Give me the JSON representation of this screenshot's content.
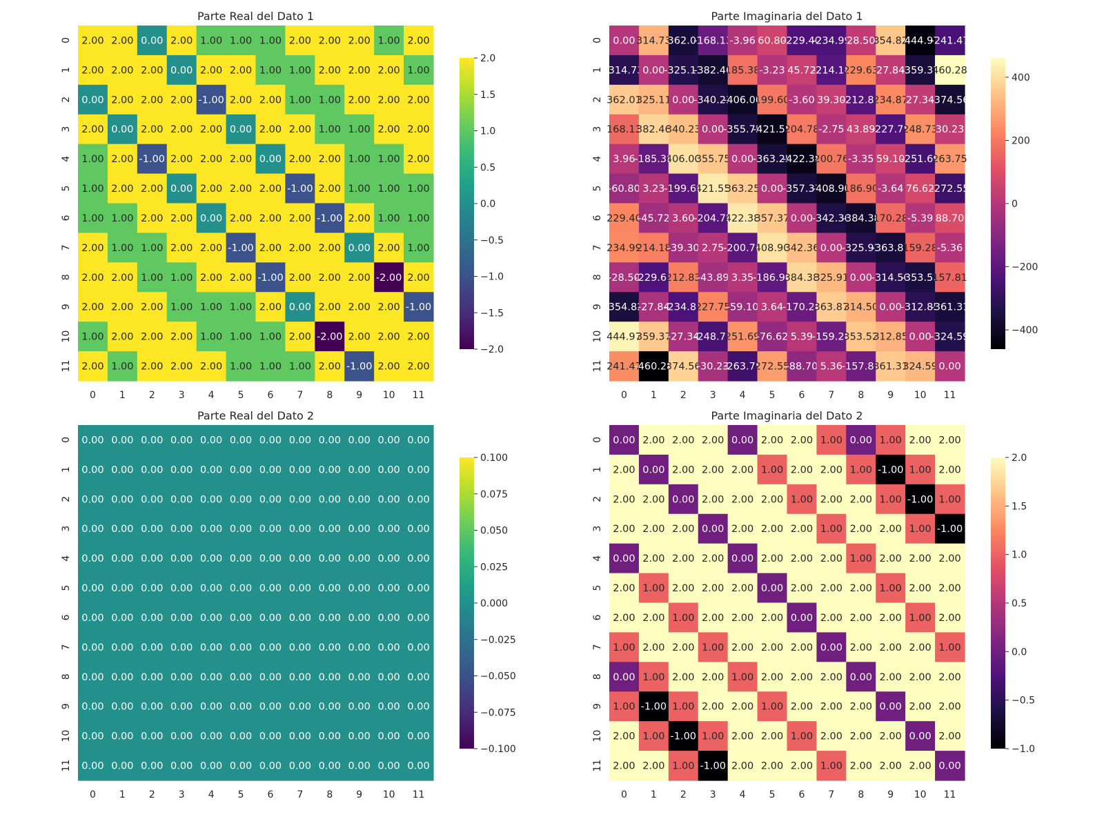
{
  "chart_data": [
    {
      "type": "heatmap",
      "title": "Parte Real del Dato 1",
      "colormap": "viridis",
      "vmin": -2,
      "vmax": 2,
      "x_ticks": [
        "0",
        "1",
        "2",
        "3",
        "4",
        "5",
        "6",
        "7",
        "8",
        "9",
        "10",
        "11"
      ],
      "y_ticks": [
        "0",
        "1",
        "2",
        "3",
        "4",
        "5",
        "6",
        "7",
        "8",
        "9",
        "10",
        "11"
      ],
      "colorbar_ticks": [
        "2.0",
        "1.5",
        "1.0",
        "0.5",
        "0.0",
        "−0.5",
        "−1.0",
        "−1.5",
        "−2.0"
      ],
      "colorbar_tick_values": [
        2.0,
        1.5,
        1.0,
        0.5,
        0.0,
        -0.5,
        -1.0,
        -1.5,
        -2.0
      ],
      "annot_format": "2f",
      "values": [
        [
          2,
          2,
          0,
          2,
          1,
          1,
          1,
          2,
          2,
          2,
          1,
          2
        ],
        [
          2,
          2,
          2,
          0,
          2,
          2,
          1,
          1,
          2,
          2,
          2,
          1
        ],
        [
          0,
          2,
          2,
          2,
          -1,
          2,
          2,
          1,
          1,
          2,
          2,
          2
        ],
        [
          2,
          0,
          2,
          2,
          2,
          0,
          2,
          2,
          1,
          1,
          2,
          2
        ],
        [
          1,
          2,
          -1,
          2,
          2,
          2,
          0,
          2,
          2,
          1,
          1,
          2
        ],
        [
          1,
          2,
          2,
          0,
          2,
          2,
          2,
          -1,
          2,
          1,
          1,
          1
        ],
        [
          1,
          1,
          2,
          2,
          0,
          2,
          2,
          2,
          -1,
          2,
          1,
          1
        ],
        [
          2,
          1,
          1,
          2,
          2,
          -1,
          2,
          2,
          2,
          0,
          2,
          1
        ],
        [
          2,
          2,
          1,
          1,
          2,
          2,
          -1,
          2,
          2,
          2,
          -2,
          2
        ],
        [
          2,
          2,
          2,
          1,
          1,
          1,
          2,
          0,
          2,
          2,
          2,
          -1
        ],
        [
          1,
          2,
          2,
          2,
          1,
          1,
          1,
          2,
          -2,
          2,
          2,
          2
        ],
        [
          2,
          1,
          2,
          2,
          2,
          1,
          1,
          1,
          2,
          -1,
          2,
          2
        ]
      ]
    },
    {
      "type": "heatmap",
      "title": "Parte Imaginaria del Dato 1",
      "colormap": "magma",
      "vmin": -461,
      "vmax": 461,
      "x_ticks": [
        "0",
        "1",
        "2",
        "3",
        "4",
        "5",
        "6",
        "7",
        "8",
        "9",
        "10",
        "11"
      ],
      "y_ticks": [
        "0",
        "1",
        "2",
        "3",
        "4",
        "5",
        "6",
        "7",
        "8",
        "9",
        "10",
        "11"
      ],
      "colorbar_ticks": [
        "400",
        "200",
        "0",
        "−200",
        "−400"
      ],
      "colorbar_tick_values": [
        400,
        200,
        0,
        -200,
        -400
      ],
      "annot_format": "2f",
      "values": [
        [
          0.0,
          314.73,
          -362.01,
          -168.13,
          -3.96,
          60.8,
          -229.4,
          -234.99,
          28.5,
          354.82,
          -444.97,
          -241.47
        ],
        [
          -314.73,
          0.0,
          -325.11,
          -382.46,
          185.38,
          -3.23,
          45.72,
          -214.18,
          229.63,
          27.84,
          -359.37,
          460.28
        ],
        [
          362.01,
          325.11,
          0.0,
          -340.23,
          -406.0,
          199.6,
          -3.6,
          39.3,
          -212.83,
          234.87,
          27.34,
          -374.56
        ],
        [
          168.13,
          382.46,
          340.23,
          0.0,
          -355.75,
          -421.55,
          204.78,
          -2.75,
          43.89,
          -227.75,
          248.73,
          30.23
        ],
        [
          3.96,
          -185.38,
          406.0,
          355.75,
          0.0,
          -363.25,
          -422.38,
          200.76,
          -3.35,
          59.1,
          -251.69,
          263.75
        ],
        [
          -60.8,
          3.23,
          -199.6,
          421.55,
          363.25,
          0.0,
          -357.37,
          -408.9,
          186.9,
          -3.64,
          76.62,
          -272.55
        ],
        [
          229.4,
          -45.72,
          3.6,
          -204.78,
          422.38,
          357.37,
          0.0,
          -342.36,
          -384.38,
          170.28,
          -5.39,
          88.7
        ],
        [
          234.99,
          214.18,
          -39.3,
          2.75,
          -200.76,
          408.9,
          342.36,
          0.0,
          -325.91,
          -363.87,
          159.28,
          -5.36
        ],
        [
          -28.5,
          -229.63,
          212.83,
          -43.89,
          3.35,
          -186.9,
          384.38,
          325.91,
          0.0,
          -314.5,
          -353.52,
          157.81
        ],
        [
          -354.82,
          -27.84,
          -234.87,
          227.75,
          -59.1,
          3.64,
          -170.28,
          363.87,
          314.5,
          0.0,
          -312.85,
          -361.31
        ],
        [
          444.97,
          359.37,
          -27.34,
          -248.73,
          251.69,
          -76.62,
          5.39,
          -159.28,
          353.52,
          312.85,
          0.0,
          -324.59
        ],
        [
          241.47,
          -460.28,
          374.56,
          -30.23,
          -263.75,
          272.55,
          -88.7,
          5.36,
          -157.81,
          361.31,
          324.59,
          0.0
        ]
      ]
    },
    {
      "type": "heatmap",
      "title": "Parte Real del Dato 2",
      "colormap": "viridis",
      "vmin": -0.1,
      "vmax": 0.1,
      "x_ticks": [
        "0",
        "1",
        "2",
        "3",
        "4",
        "5",
        "6",
        "7",
        "8",
        "9",
        "10",
        "11"
      ],
      "y_ticks": [
        "0",
        "1",
        "2",
        "3",
        "4",
        "5",
        "6",
        "7",
        "8",
        "9",
        "10",
        "11"
      ],
      "colorbar_ticks": [
        "0.100",
        "0.075",
        "0.050",
        "0.025",
        "0.000",
        "−0.025",
        "−0.050",
        "−0.075",
        "−0.100"
      ],
      "colorbar_tick_values": [
        0.1,
        0.075,
        0.05,
        0.025,
        0,
        -0.025,
        -0.05,
        -0.075,
        -0.1
      ],
      "annot_format": "2f",
      "values": [
        [
          0,
          0,
          0,
          0,
          0,
          0,
          0,
          0,
          0,
          0,
          0,
          0
        ],
        [
          0,
          0,
          0,
          0,
          0,
          0,
          0,
          0,
          0,
          0,
          0,
          0
        ],
        [
          0,
          0,
          0,
          0,
          0,
          0,
          0,
          0,
          0,
          0,
          0,
          0
        ],
        [
          0,
          0,
          0,
          0,
          0,
          0,
          0,
          0,
          0,
          0,
          0,
          0
        ],
        [
          0,
          0,
          0,
          0,
          0,
          0,
          0,
          0,
          0,
          0,
          0,
          0
        ],
        [
          0,
          0,
          0,
          0,
          0,
          0,
          0,
          0,
          0,
          0,
          0,
          0
        ],
        [
          0,
          0,
          0,
          0,
          0,
          0,
          0,
          0,
          0,
          0,
          0,
          0
        ],
        [
          0,
          0,
          0,
          0,
          0,
          0,
          0,
          0,
          0,
          0,
          0,
          0
        ],
        [
          0,
          0,
          0,
          0,
          0,
          0,
          0,
          0,
          0,
          0,
          0,
          0
        ],
        [
          0,
          0,
          0,
          0,
          0,
          0,
          0,
          0,
          0,
          0,
          0,
          0
        ],
        [
          0,
          0,
          0,
          0,
          0,
          0,
          0,
          0,
          0,
          0,
          0,
          0
        ],
        [
          0,
          0,
          0,
          0,
          0,
          0,
          0,
          0,
          0,
          0,
          0,
          0
        ]
      ]
    },
    {
      "type": "heatmap",
      "title": "Parte Imaginaria del Dato 2",
      "colormap": "magma",
      "vmin": -1,
      "vmax": 2,
      "x_ticks": [
        "0",
        "1",
        "2",
        "3",
        "4",
        "5",
        "6",
        "7",
        "8",
        "9",
        "10",
        "11"
      ],
      "y_ticks": [
        "0",
        "1",
        "2",
        "3",
        "4",
        "5",
        "6",
        "7",
        "8",
        "9",
        "10",
        "11"
      ],
      "colorbar_ticks": [
        "2.0",
        "1.5",
        "1.0",
        "0.5",
        "0.0",
        "−0.5",
        "−1.0"
      ],
      "colorbar_tick_values": [
        2.0,
        1.5,
        1.0,
        0.5,
        0.0,
        -0.5,
        -1.0
      ],
      "annot_format": "2f",
      "values": [
        [
          0,
          2,
          2,
          2,
          0,
          2,
          2,
          1,
          0,
          1,
          2,
          2
        ],
        [
          2,
          0,
          2,
          2,
          2,
          1,
          2,
          2,
          1,
          -1,
          1,
          2
        ],
        [
          2,
          2,
          0,
          2,
          2,
          2,
          1,
          2,
          2,
          1,
          -1,
          1
        ],
        [
          2,
          2,
          2,
          0,
          2,
          2,
          2,
          1,
          2,
          2,
          1,
          -1
        ],
        [
          0,
          2,
          2,
          2,
          0,
          2,
          2,
          2,
          1,
          2,
          2,
          2
        ],
        [
          2,
          1,
          2,
          2,
          2,
          0,
          2,
          2,
          2,
          1,
          2,
          2
        ],
        [
          2,
          2,
          1,
          2,
          2,
          2,
          0,
          2,
          2,
          2,
          1,
          2
        ],
        [
          1,
          2,
          2,
          1,
          2,
          2,
          2,
          0,
          2,
          2,
          2,
          1
        ],
        [
          0,
          1,
          2,
          2,
          1,
          2,
          2,
          2,
          0,
          2,
          2,
          2
        ],
        [
          1,
          -1,
          1,
          2,
          2,
          1,
          2,
          2,
          2,
          0,
          2,
          2
        ],
        [
          2,
          1,
          -1,
          1,
          2,
          2,
          1,
          2,
          2,
          2,
          0,
          2
        ],
        [
          2,
          2,
          1,
          -1,
          2,
          2,
          2,
          1,
          2,
          2,
          2,
          0
        ]
      ]
    }
  ]
}
